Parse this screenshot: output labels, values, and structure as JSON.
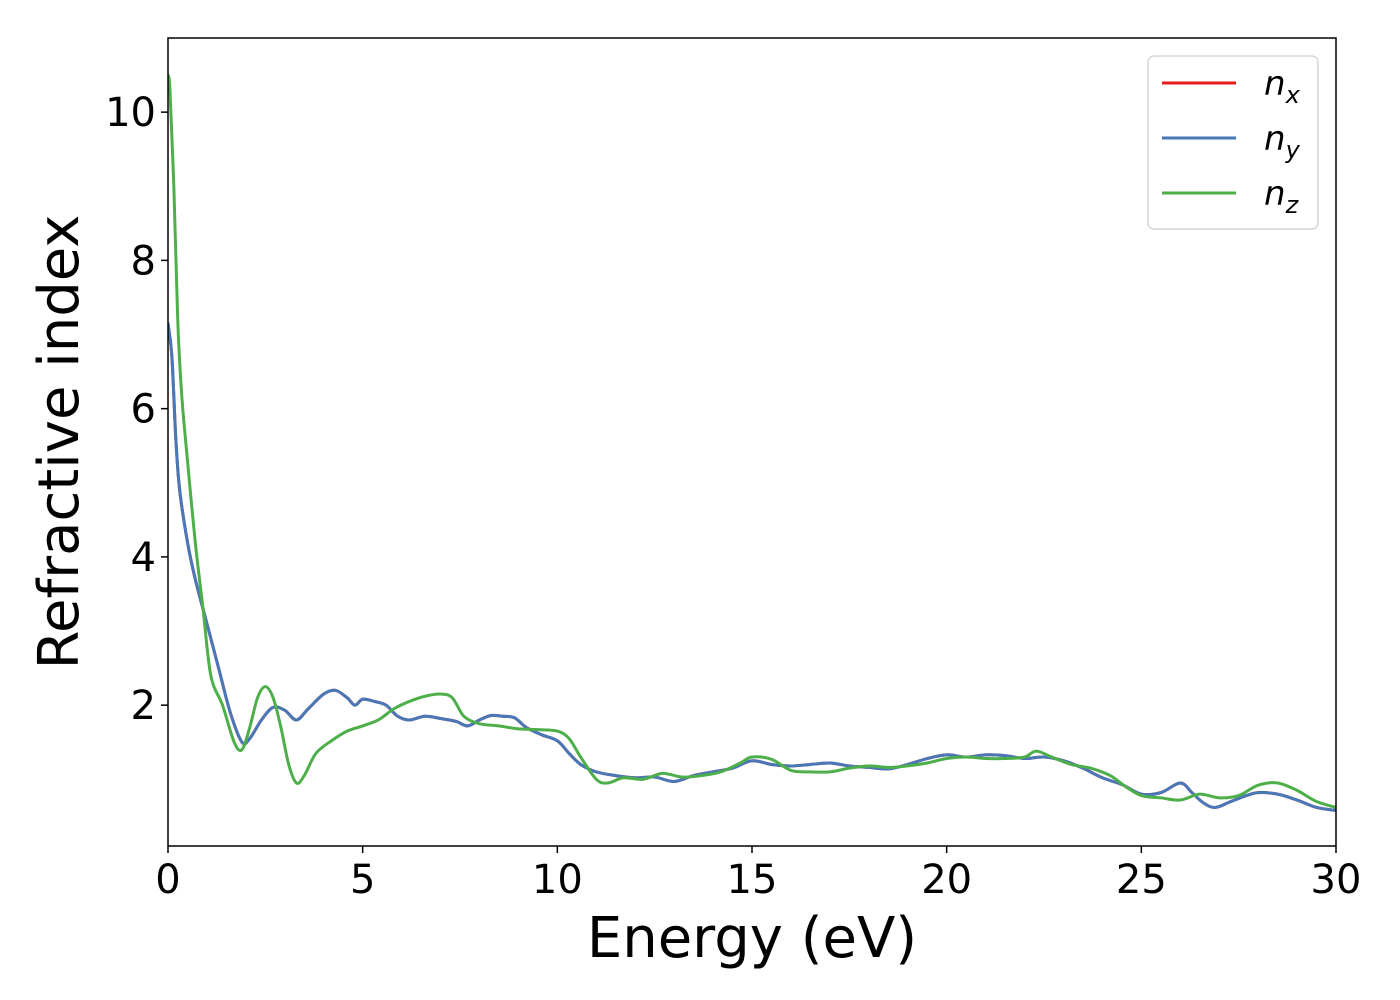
{
  "chart_data": {
    "type": "line",
    "title": "",
    "xlabel": "Energy (eV)",
    "ylabel": "Refractive index",
    "xlim": [
      0,
      30
    ],
    "ylim": [
      0.1,
      11.0
    ],
    "xticks": [
      0,
      5,
      10,
      15,
      20,
      25,
      30
    ],
    "yticks": [
      2,
      4,
      6,
      8,
      10
    ],
    "grid": false,
    "legend_position": "top-right",
    "series": [
      {
        "name": "n_x",
        "label_base": "n",
        "label_sub": "x",
        "color": "#e41a1c",
        "x": [
          0,
          0.1,
          0.2,
          0.3,
          0.5,
          0.7,
          1.0,
          1.3,
          1.6,
          1.9,
          2.1,
          2.4,
          2.7,
          3.0,
          3.3,
          3.6,
          4.0,
          4.3,
          4.6,
          4.8,
          5.0,
          5.3,
          5.6,
          5.9,
          6.2,
          6.6,
          7.0,
          7.4,
          7.7,
          8.0,
          8.3,
          8.6,
          8.9,
          9.2,
          9.6,
          10.0,
          10.3,
          10.6,
          11.0,
          11.5,
          12.0,
          12.5,
          13.0,
          13.5,
          14.0,
          14.5,
          15.0,
          15.5,
          16.0,
          16.5,
          17.0,
          17.5,
          18.0,
          18.5,
          19.0,
          19.5,
          20.0,
          20.5,
          21.0,
          21.5,
          22.0,
          22.5,
          23.0,
          23.5,
          24.0,
          24.5,
          25.0,
          25.5,
          26.0,
          26.3,
          26.6,
          26.9,
          27.3,
          27.7,
          28.0,
          28.5,
          29.0,
          29.5,
          30.0
        ],
        "y": [
          7.15,
          6.7,
          5.6,
          4.9,
          4.2,
          3.7,
          3.1,
          2.5,
          1.9,
          1.5,
          1.55,
          1.8,
          1.97,
          1.93,
          1.8,
          1.95,
          2.15,
          2.2,
          2.1,
          2.0,
          2.08,
          2.05,
          2.0,
          1.85,
          1.8,
          1.85,
          1.82,
          1.78,
          1.72,
          1.8,
          1.86,
          1.85,
          1.83,
          1.7,
          1.6,
          1.52,
          1.35,
          1.2,
          1.1,
          1.05,
          1.02,
          1.03,
          0.97,
          1.05,
          1.1,
          1.15,
          1.25,
          1.2,
          1.18,
          1.2,
          1.22,
          1.18,
          1.16,
          1.14,
          1.2,
          1.28,
          1.33,
          1.3,
          1.33,
          1.32,
          1.28,
          1.3,
          1.25,
          1.15,
          1.02,
          0.93,
          0.8,
          0.82,
          0.95,
          0.82,
          0.68,
          0.62,
          0.7,
          0.78,
          0.82,
          0.8,
          0.72,
          0.62,
          0.58
        ]
      },
      {
        "name": "n_y",
        "label_base": "n",
        "label_sub": "y",
        "color": "#4878b8",
        "x": [
          0,
          0.1,
          0.2,
          0.3,
          0.5,
          0.7,
          1.0,
          1.3,
          1.6,
          1.9,
          2.1,
          2.4,
          2.7,
          3.0,
          3.3,
          3.6,
          4.0,
          4.3,
          4.6,
          4.8,
          5.0,
          5.3,
          5.6,
          5.9,
          6.2,
          6.6,
          7.0,
          7.4,
          7.7,
          8.0,
          8.3,
          8.6,
          8.9,
          9.2,
          9.6,
          10.0,
          10.3,
          10.6,
          11.0,
          11.5,
          12.0,
          12.5,
          13.0,
          13.5,
          14.0,
          14.5,
          15.0,
          15.5,
          16.0,
          16.5,
          17.0,
          17.5,
          18.0,
          18.5,
          19.0,
          19.5,
          20.0,
          20.5,
          21.0,
          21.5,
          22.0,
          22.5,
          23.0,
          23.5,
          24.0,
          24.5,
          25.0,
          25.5,
          26.0,
          26.3,
          26.6,
          26.9,
          27.3,
          27.7,
          28.0,
          28.5,
          29.0,
          29.5,
          30.0
        ],
        "y": [
          7.15,
          6.7,
          5.6,
          4.9,
          4.2,
          3.7,
          3.1,
          2.5,
          1.9,
          1.5,
          1.55,
          1.8,
          1.97,
          1.93,
          1.8,
          1.95,
          2.15,
          2.2,
          2.1,
          2.0,
          2.08,
          2.05,
          2.0,
          1.85,
          1.8,
          1.85,
          1.82,
          1.78,
          1.72,
          1.8,
          1.86,
          1.85,
          1.83,
          1.7,
          1.6,
          1.52,
          1.35,
          1.2,
          1.1,
          1.05,
          1.02,
          1.03,
          0.97,
          1.05,
          1.1,
          1.15,
          1.25,
          1.2,
          1.18,
          1.2,
          1.22,
          1.18,
          1.16,
          1.14,
          1.2,
          1.28,
          1.33,
          1.3,
          1.33,
          1.32,
          1.28,
          1.3,
          1.25,
          1.15,
          1.02,
          0.93,
          0.8,
          0.82,
          0.95,
          0.82,
          0.68,
          0.62,
          0.7,
          0.78,
          0.82,
          0.8,
          0.72,
          0.62,
          0.58
        ]
      },
      {
        "name": "n_z",
        "label_base": "n",
        "label_sub": "z",
        "color": "#4daf4a",
        "x": [
          0,
          0.05,
          0.15,
          0.25,
          0.35,
          0.5,
          0.7,
          0.9,
          1.1,
          1.4,
          1.7,
          1.9,
          2.1,
          2.3,
          2.5,
          2.7,
          2.9,
          3.1,
          3.3,
          3.5,
          3.8,
          4.2,
          4.6,
          5.0,
          5.4,
          5.8,
          6.2,
          6.6,
          7.0,
          7.3,
          7.6,
          8.0,
          8.5,
          9.0,
          9.5,
          10.0,
          10.3,
          10.6,
          11.0,
          11.3,
          11.7,
          12.2,
          12.7,
          13.2,
          13.7,
          14.2,
          14.7,
          15.0,
          15.5,
          16.0,
          16.5,
          17.0,
          17.5,
          18.0,
          18.5,
          19.0,
          19.5,
          20.0,
          20.5,
          21.0,
          21.5,
          22.0,
          22.3,
          22.7,
          23.2,
          23.7,
          24.2,
          24.6,
          25.0,
          25.5,
          26.0,
          26.5,
          27.0,
          27.5,
          28.0,
          28.5,
          29.0,
          29.5,
          30.0
        ],
        "y": [
          10.5,
          10.3,
          9.0,
          7.2,
          6.2,
          5.3,
          4.2,
          3.3,
          2.4,
          2.0,
          1.5,
          1.4,
          1.7,
          2.1,
          2.25,
          2.1,
          1.7,
          1.2,
          0.95,
          1.05,
          1.35,
          1.52,
          1.65,
          1.72,
          1.8,
          1.95,
          2.05,
          2.12,
          2.15,
          2.1,
          1.85,
          1.75,
          1.72,
          1.68,
          1.67,
          1.65,
          1.55,
          1.3,
          1.0,
          0.95,
          1.02,
          1.0,
          1.08,
          1.03,
          1.05,
          1.1,
          1.22,
          1.3,
          1.27,
          1.12,
          1.1,
          1.1,
          1.15,
          1.18,
          1.16,
          1.18,
          1.22,
          1.28,
          1.3,
          1.28,
          1.28,
          1.3,
          1.38,
          1.3,
          1.2,
          1.15,
          1.05,
          0.9,
          0.78,
          0.75,
          0.72,
          0.8,
          0.75,
          0.78,
          0.92,
          0.95,
          0.85,
          0.7,
          0.62
        ]
      }
    ]
  }
}
